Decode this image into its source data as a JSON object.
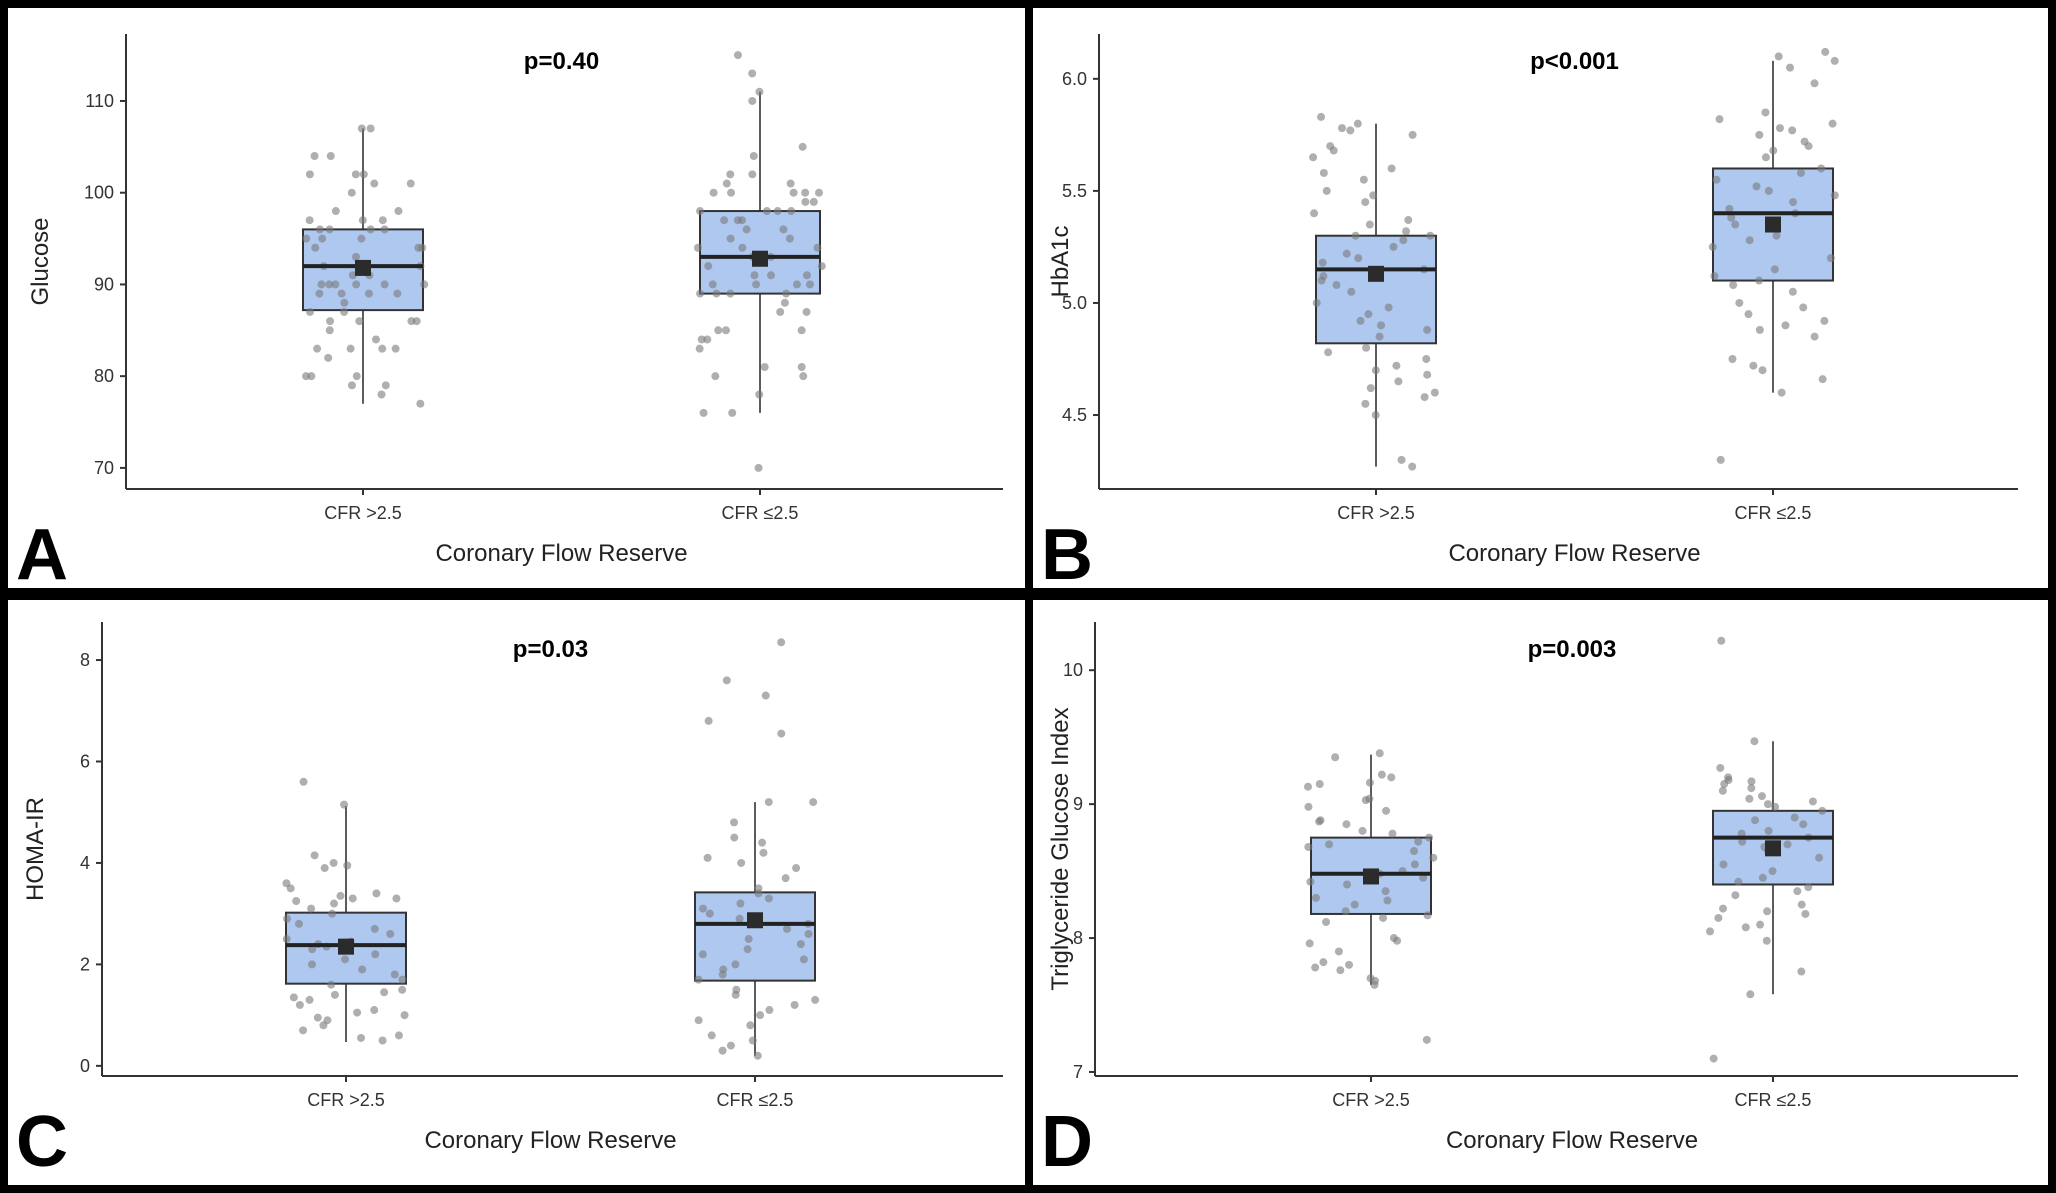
{
  "chart_data": [
    {
      "panel_letter": "A",
      "type": "box",
      "p_label": "p=0.40",
      "xlabel": "Coronary Flow Reserve",
      "ylabel": "Glucose",
      "categories": [
        "CFR >2.5",
        "CFR ≤2.5"
      ],
      "ylim": [
        67.7,
        117.3
      ],
      "yticks": [
        70,
        80,
        90,
        100,
        110
      ],
      "ytick_labels": [
        "70",
        "80",
        "90",
        "100",
        "110"
      ],
      "boxes": [
        {
          "whisker_low": 77,
          "q1": 87.2,
          "median": 92,
          "q3": 96,
          "whisker_high": 107,
          "mean": 91.8
        },
        {
          "whisker_low": 76,
          "q1": 89,
          "median": 93,
          "q3": 98,
          "whisker_high": 111,
          "mean": 92.8
        }
      ],
      "points": [
        [
          107,
          107,
          104,
          104,
          102,
          102,
          102,
          101,
          101,
          100,
          98,
          98,
          97,
          97,
          97,
          96,
          96,
          96,
          96,
          95,
          95,
          95,
          94,
          94,
          94,
          93,
          92,
          92,
          91,
          91,
          90,
          90,
          90,
          90,
          90,
          90,
          89,
          89,
          89,
          89,
          88,
          87,
          87,
          86,
          86,
          86,
          86,
          85,
          84,
          83,
          83,
          83,
          83,
          82,
          80,
          80,
          80,
          79,
          79,
          78,
          77
        ],
        [
          115,
          113,
          111,
          110,
          105,
          104,
          102,
          102,
          101,
          101,
          100,
          100,
          100,
          100,
          100,
          99,
          99,
          98,
          98,
          98,
          98,
          97,
          97,
          97,
          96,
          96,
          95,
          95,
          94,
          94,
          94,
          93,
          93,
          92,
          92,
          91,
          91,
          91,
          90,
          90,
          90,
          90,
          89,
          89,
          89,
          89,
          88,
          87,
          87,
          85,
          85,
          85,
          84,
          84,
          83,
          81,
          81,
          80,
          80,
          78,
          76,
          76,
          70
        ]
      ]
    },
    {
      "panel_letter": "B",
      "type": "box",
      "p_label": "p<0.001",
      "xlabel": "Coronary Flow Reserve",
      "ylabel": "HbA1c",
      "categories": [
        "CFR >2.5",
        "CFR ≤2.5"
      ],
      "ylim": [
        4.17,
        6.2
      ],
      "yticks": [
        4.5,
        5.0,
        5.5,
        6.0
      ],
      "ytick_labels": [
        "4.5",
        "5.0",
        "5.5",
        "6.0"
      ],
      "boxes": [
        {
          "whisker_low": 4.27,
          "q1": 4.82,
          "median": 5.15,
          "q3": 5.3,
          "whisker_high": 5.8,
          "mean": 5.13
        },
        {
          "whisker_low": 4.6,
          "q1": 5.1,
          "median": 5.4,
          "q3": 5.6,
          "whisker_high": 6.08,
          "mean": 5.35
        }
      ],
      "points": [
        [
          5.83,
          5.8,
          5.78,
          5.77,
          5.75,
          5.7,
          5.68,
          5.65,
          5.6,
          5.58,
          5.55,
          5.5,
          5.48,
          5.45,
          5.4,
          5.37,
          5.35,
          5.32,
          5.3,
          5.3,
          5.28,
          5.25,
          5.22,
          5.2,
          5.18,
          5.15,
          5.12,
          5.1,
          5.08,
          5.05,
          5.0,
          4.98,
          4.95,
          4.92,
          4.9,
          4.88,
          4.85,
          4.8,
          4.78,
          4.75,
          4.72,
          4.7,
          4.68,
          4.65,
          4.62,
          4.6,
          4.58,
          4.55,
          4.5,
          4.3,
          4.27
        ],
        [
          6.12,
          6.1,
          6.08,
          6.05,
          5.98,
          5.85,
          5.82,
          5.8,
          5.78,
          5.77,
          5.75,
          5.72,
          5.7,
          5.68,
          5.65,
          5.6,
          5.58,
          5.55,
          5.52,
          5.5,
          5.48,
          5.45,
          5.42,
          5.4,
          5.38,
          5.35,
          5.3,
          5.28,
          5.25,
          5.2,
          5.15,
          5.12,
          5.1,
          5.08,
          5.05,
          5.0,
          4.98,
          4.95,
          4.92,
          4.9,
          4.88,
          4.85,
          4.75,
          4.72,
          4.7,
          4.66,
          4.6,
          4.3
        ]
      ]
    },
    {
      "panel_letter": "C",
      "type": "box",
      "p_label": "p=0.03",
      "xlabel": "Coronary Flow Reserve",
      "ylabel": "HOMA-IR",
      "categories": [
        "CFR >2.5",
        "CFR ≤2.5"
      ],
      "ylim": [
        -0.2,
        8.75
      ],
      "yticks": [
        0,
        2,
        4,
        6,
        8
      ],
      "ytick_labels": [
        "0",
        "2",
        "4",
        "6",
        "8"
      ],
      "boxes": [
        {
          "whisker_low": 0.47,
          "q1": 1.62,
          "median": 2.38,
          "q3": 3.02,
          "whisker_high": 5.12,
          "mean": 2.35
        },
        {
          "whisker_low": 0.2,
          "q1": 1.68,
          "median": 2.8,
          "q3": 3.42,
          "whisker_high": 5.2,
          "mean": 2.87
        }
      ],
      "points": [
        [
          5.6,
          5.15,
          4.15,
          4.0,
          3.95,
          3.9,
          3.6,
          3.5,
          3.4,
          3.35,
          3.3,
          3.3,
          3.25,
          3.2,
          3.1,
          3.0,
          2.9,
          2.8,
          2.7,
          2.6,
          2.5,
          2.45,
          2.4,
          2.35,
          2.3,
          2.2,
          2.1,
          2.0,
          1.9,
          1.8,
          1.7,
          1.6,
          1.5,
          1.45,
          1.4,
          1.35,
          1.3,
          1.2,
          1.1,
          1.05,
          1.0,
          0.95,
          0.9,
          0.8,
          0.7,
          0.6,
          0.55,
          0.5
        ],
        [
          8.35,
          7.6,
          7.3,
          6.8,
          6.55,
          5.2,
          5.2,
          4.8,
          4.5,
          4.4,
          4.2,
          4.1,
          4.0,
          3.9,
          3.7,
          3.5,
          3.4,
          3.3,
          3.2,
          3.1,
          3.0,
          2.9,
          2.8,
          2.7,
          2.6,
          2.5,
          2.4,
          2.3,
          2.2,
          2.1,
          2.0,
          1.9,
          1.8,
          1.7,
          1.5,
          1.4,
          1.3,
          1.2,
          1.1,
          1.0,
          0.9,
          0.8,
          0.6,
          0.5,
          0.4,
          0.3,
          0.2
        ]
      ]
    },
    {
      "panel_letter": "D",
      "type": "box",
      "p_label": "p=0.003",
      "xlabel": "Coronary Flow Reserve",
      "ylabel": "Triglyceride Glucose Index",
      "categories": [
        "CFR >2.5",
        "CFR ≤2.5"
      ],
      "ylim": [
        6.97,
        10.36
      ],
      "yticks": [
        7,
        8,
        9,
        10
      ],
      "ytick_labels": [
        "7",
        "8",
        "9",
        "10"
      ],
      "boxes": [
        {
          "whisker_low": 7.65,
          "q1": 8.18,
          "median": 8.48,
          "q3": 8.75,
          "whisker_high": 9.37,
          "mean": 8.46
        },
        {
          "whisker_low": 7.58,
          "q1": 8.4,
          "median": 8.75,
          "q3": 8.95,
          "whisker_high": 9.47,
          "mean": 8.67
        }
      ],
      "points": [
        [
          9.38,
          9.35,
          9.22,
          9.2,
          9.16,
          9.15,
          9.13,
          9.04,
          9.03,
          8.98,
          8.95,
          8.88,
          8.87,
          8.85,
          8.8,
          8.78,
          8.75,
          8.72,
          8.7,
          8.68,
          8.65,
          8.6,
          8.55,
          8.5,
          8.48,
          8.45,
          8.42,
          8.4,
          8.35,
          8.3,
          8.28,
          8.25,
          8.2,
          8.17,
          8.15,
          8.12,
          8.0,
          7.98,
          7.96,
          7.9,
          7.82,
          7.8,
          7.78,
          7.76,
          7.7,
          7.68,
          7.65,
          7.24
        ],
        [
          10.22,
          9.47,
          9.27,
          9.2,
          9.18,
          9.17,
          9.15,
          9.12,
          9.1,
          9.06,
          9.04,
          9.02,
          9.0,
          8.98,
          8.95,
          8.9,
          8.88,
          8.85,
          8.8,
          8.78,
          8.75,
          8.72,
          8.7,
          8.68,
          8.65,
          8.6,
          8.55,
          8.5,
          8.45,
          8.42,
          8.38,
          8.35,
          8.32,
          8.25,
          8.22,
          8.2,
          8.18,
          8.15,
          8.1,
          8.08,
          8.05,
          7.98,
          7.75,
          7.58,
          7.1
        ]
      ]
    }
  ],
  "colors": {
    "box_fill": "#aec8f0",
    "box_line": "#333333",
    "point": "#7a7a7a",
    "mean_marker": "#2b2b2b",
    "frame": "#000000"
  }
}
